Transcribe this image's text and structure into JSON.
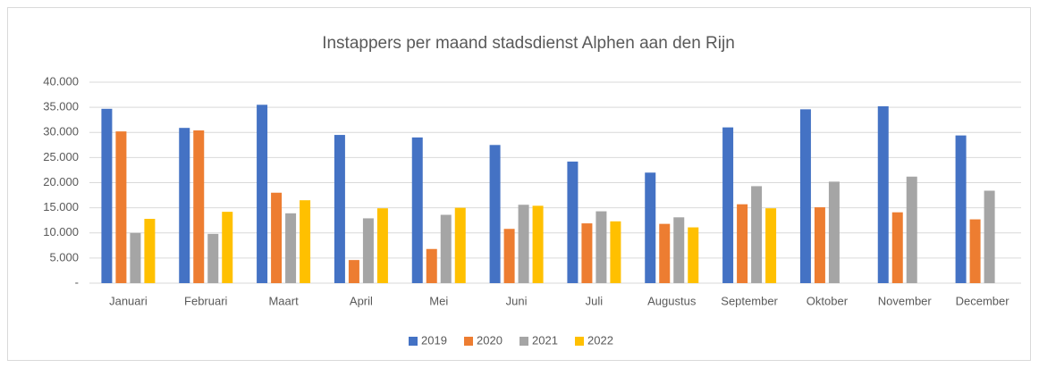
{
  "chart_data": {
    "type": "bar",
    "title": "Instappers per maand stadsdienst Alphen aan den Rijn",
    "categories": [
      "Januari",
      "Februari",
      "Maart",
      "April",
      "Mei",
      "Juni",
      "Juli",
      "Augustus",
      "September",
      "Oktober",
      "November",
      "December"
    ],
    "series": [
      {
        "name": "2019",
        "color": "#4472c4",
        "values": [
          34700,
          30900,
          35500,
          29500,
          29000,
          27500,
          24200,
          22000,
          31000,
          34600,
          35200,
          29400
        ]
      },
      {
        "name": "2020",
        "color": "#ed7d31",
        "values": [
          30200,
          30400,
          18000,
          4600,
          6800,
          10800,
          11900,
          11800,
          15700,
          15100,
          14100,
          12700
        ]
      },
      {
        "name": "2021",
        "color": "#a5a5a5",
        "values": [
          10000,
          9800,
          13900,
          12900,
          13600,
          15600,
          14300,
          13100,
          19300,
          20200,
          21200,
          18400
        ]
      },
      {
        "name": "2022",
        "color": "#ffc000",
        "values": [
          12800,
          14200,
          16500,
          14900,
          15000,
          15400,
          12300,
          11100,
          14900,
          null,
          null,
          null
        ]
      }
    ],
    "ylim": [
      0,
      40000
    ],
    "yticks": [
      {
        "value": 0,
        "label": "-"
      },
      {
        "value": 5000,
        "label": "5.000"
      },
      {
        "value": 10000,
        "label": "10.000"
      },
      {
        "value": 15000,
        "label": "15.000"
      },
      {
        "value": 20000,
        "label": "20.000"
      },
      {
        "value": 25000,
        "label": "25.000"
      },
      {
        "value": 30000,
        "label": "30.000"
      },
      {
        "value": 35000,
        "label": "35.000"
      },
      {
        "value": 40000,
        "label": "40.000"
      }
    ],
    "grid": true,
    "legend": "bottom"
  }
}
